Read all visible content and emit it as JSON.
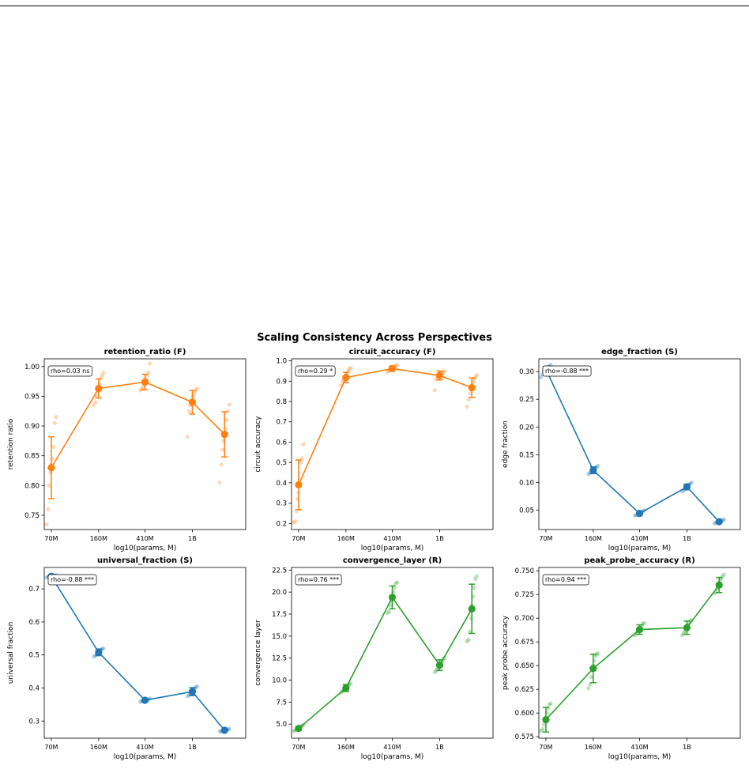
{
  "figure": {
    "suptitle": "Scaling Consistency Across Perspectives",
    "xtick_labels": [
      "70M",
      "160M",
      "410M",
      "1B"
    ],
    "xlabel": "log10(params, M)"
  },
  "colors": {
    "orange": "#ff7f0e",
    "blue": "#1f77b4",
    "green": "#2ca02c"
  },
  "chart_data": [
    {
      "type": "line",
      "title": "retention_ratio (F)",
      "xlabel": "log10(params, M)",
      "ylabel": "retention ratio",
      "annotation": "rho=0.03 ns",
      "color": "orange",
      "yticks": [
        0.75,
        0.8,
        0.85,
        0.9,
        0.95,
        1.0
      ],
      "ytick_labels": [
        "0.75",
        "0.80",
        "0.85",
        "0.90",
        "0.95",
        "1.00"
      ],
      "ylim": [
        0.726,
        1.013
      ],
      "x": [
        70,
        160,
        410,
        1000,
        1400
      ],
      "y": [
        0.83,
        0.963,
        0.974,
        0.94,
        0.886
      ],
      "yerr": [
        0.052,
        0.016,
        0.013,
        0.02,
        0.038
      ],
      "points": [
        [
          0.735,
          0.76,
          0.8,
          0.822,
          0.835,
          0.845,
          0.865,
          0.905,
          0.915
        ],
        [
          0.935,
          0.94,
          0.95,
          0.96,
          0.965,
          0.97,
          0.98,
          0.985,
          0.99
        ],
        [
          0.96,
          0.962,
          0.965,
          0.97,
          0.975,
          0.978,
          0.985,
          0.99,
          1.005
        ],
        [
          0.882,
          0.925,
          0.935,
          0.94,
          0.945,
          0.95,
          0.955,
          0.96,
          0.963
        ],
        [
          0.805,
          0.835,
          0.86,
          0.875,
          0.885,
          0.895,
          0.91,
          0.925,
          0.936
        ]
      ]
    },
    {
      "type": "line",
      "title": "circuit_accuracy (F)",
      "xlabel": "log10(params, M)",
      "ylabel": "circuit accuracy",
      "annotation": "rho=0.29 *",
      "color": "orange",
      "yticks": [
        0.2,
        0.3,
        0.4,
        0.5,
        0.6,
        0.7,
        0.8,
        0.9,
        1.0
      ],
      "ytick_labels": [
        "0.2",
        "0.3",
        "0.4",
        "0.5",
        "0.6",
        "0.7",
        "0.8",
        "0.9",
        "1.0"
      ],
      "ylim": [
        0.17,
        1.01
      ],
      "x": [
        70,
        160,
        410,
        1000,
        1400
      ],
      "y": [
        0.39,
        0.918,
        0.962,
        0.928,
        0.868
      ],
      "yerr": [
        0.122,
        0.025,
        0.013,
        0.022,
        0.048
      ],
      "points": [
        [
          0.205,
          0.21,
          0.26,
          0.32,
          0.35,
          0.4,
          0.5,
          0.52,
          0.59
        ],
        [
          0.88,
          0.9,
          0.91,
          0.92,
          0.93,
          0.94,
          0.95,
          0.96,
          0.965
        ],
        [
          0.945,
          0.95,
          0.955,
          0.96,
          0.962,
          0.965,
          0.97,
          0.975,
          0.98
        ],
        [
          0.855,
          0.91,
          0.92,
          0.925,
          0.93,
          0.935,
          0.94,
          0.945,
          0.95
        ],
        [
          0.775,
          0.81,
          0.84,
          0.86,
          0.88,
          0.895,
          0.91,
          0.92,
          0.93
        ]
      ]
    },
    {
      "type": "line",
      "title": "edge_fraction (S)",
      "xlabel": "log10(params, M)",
      "ylabel": "edge fraction",
      "annotation": "rho=-0.88 ***",
      "color": "blue",
      "yticks": [
        0.05,
        0.1,
        0.15,
        0.2,
        0.25,
        0.3
      ],
      "ytick_labels": [
        "0.05",
        "0.10",
        "0.15",
        "0.20",
        "0.25",
        "0.30"
      ],
      "ylim": [
        0.015,
        0.323
      ],
      "x": [
        70,
        160,
        410,
        1000,
        1400
      ],
      "y": [
        0.304,
        0.122,
        0.044,
        0.092,
        0.029
      ],
      "yerr": [
        0.005,
        0.006,
        0.003,
        0.005,
        0.002
      ],
      "points": [
        [
          0.29,
          0.295,
          0.3,
          0.302,
          0.305,
          0.307,
          0.308,
          0.31,
          0.312
        ],
        [
          0.115,
          0.117,
          0.119,
          0.121,
          0.122,
          0.124,
          0.126,
          0.128,
          0.13
        ],
        [
          0.04,
          0.041,
          0.042,
          0.043,
          0.044,
          0.045,
          0.046,
          0.048,
          0.05
        ],
        [
          0.084,
          0.086,
          0.088,
          0.09,
          0.092,
          0.094,
          0.096,
          0.098,
          0.1
        ],
        [
          0.026,
          0.027,
          0.028,
          0.028,
          0.029,
          0.03,
          0.031,
          0.032,
          0.033
        ]
      ]
    },
    {
      "type": "line",
      "title": "universal_fraction (S)",
      "xlabel": "log10(params, M)",
      "ylabel": "universal fraction",
      "annotation": "rho=-0.88 ***",
      "color": "blue",
      "yticks": [
        0.3,
        0.4,
        0.5,
        0.6,
        0.7
      ],
      "ytick_labels": [
        "0.3",
        "0.4",
        "0.5",
        "0.6",
        "0.7"
      ],
      "ylim": [
        0.248,
        0.765
      ],
      "x": [
        70,
        160,
        410,
        1000,
        1400
      ],
      "y": [
        0.738,
        0.508,
        0.363,
        0.389,
        0.272
      ],
      "yerr": [
        0.002,
        0.01,
        0.004,
        0.012,
        0.003
      ],
      "points": [
        [
          0.735,
          0.736,
          0.737,
          0.738,
          0.738,
          0.739,
          0.74,
          0.741,
          0.742
        ],
        [
          0.495,
          0.498,
          0.502,
          0.505,
          0.508,
          0.512,
          0.515,
          0.518,
          0.52
        ],
        [
          0.358,
          0.36,
          0.361,
          0.362,
          0.363,
          0.364,
          0.365,
          0.366,
          0.368
        ],
        [
          0.375,
          0.378,
          0.382,
          0.386,
          0.39,
          0.394,
          0.398,
          0.402,
          0.405
        ],
        [
          0.268,
          0.269,
          0.27,
          0.271,
          0.272,
          0.273,
          0.274,
          0.275,
          0.276
        ]
      ]
    },
    {
      "type": "line",
      "title": "convergence_layer (R)",
      "xlabel": "log10(params, M)",
      "ylabel": "convergence layer",
      "annotation": "rho=0.76 ***",
      "color": "green",
      "yticks": [
        5.0,
        7.5,
        10.0,
        12.5,
        15.0,
        17.5,
        20.0,
        22.5
      ],
      "ytick_labels": [
        "5.0",
        "7.5",
        "10.0",
        "12.5",
        "15.0",
        "17.5",
        "20.0",
        "22.5"
      ],
      "ylim": [
        3.4,
        22.8
      ],
      "x": [
        70,
        160,
        410,
        1000,
        1400
      ],
      "y": [
        4.5,
        9.1,
        19.4,
        11.7,
        18.1
      ],
      "yerr": [
        0.2,
        0.4,
        1.3,
        0.6,
        2.8
      ],
      "points": [
        [
          4.2,
          4.3,
          4.4,
          4.5,
          4.5,
          4.6,
          4.7,
          4.8,
          4.9
        ],
        [
          8.6,
          8.8,
          9.0,
          9.1,
          9.2,
          9.3,
          9.4,
          9.5,
          9.6
        ],
        [
          17.6,
          17.8,
          18.5,
          19.0,
          19.5,
          20.0,
          20.5,
          21.0,
          21.1
        ],
        [
          10.9,
          11.1,
          11.3,
          11.5,
          11.7,
          11.9,
          12.1,
          12.3,
          12.5
        ],
        [
          14.4,
          14.6,
          15.5,
          17.0,
          18.5,
          19.5,
          20.5,
          21.5,
          21.8
        ]
      ]
    },
    {
      "type": "line",
      "title": "peak_probe_accuracy (R)",
      "xlabel": "log10(params, M)",
      "ylabel": "peak probe accuracy",
      "annotation": "rho=0.94 ***",
      "color": "green",
      "yticks": [
        0.575,
        0.6,
        0.625,
        0.65,
        0.675,
        0.7,
        0.725,
        0.75
      ],
      "ytick_labels": [
        "0.575",
        "0.600",
        "0.625",
        "0.650",
        "0.675",
        "0.700",
        "0.725",
        "0.750"
      ],
      "ylim": [
        0.5735,
        0.7535
      ],
      "x": [
        70,
        160,
        410,
        1000,
        1400
      ],
      "y": [
        0.593,
        0.647,
        0.688,
        0.69,
        0.735
      ],
      "yerr": [
        0.013,
        0.015,
        0.005,
        0.007,
        0.008
      ],
      "points": [
        [
          0.581,
          0.583,
          0.588,
          0.592,
          0.595,
          0.6,
          0.605,
          0.609,
          0.61
        ],
        [
          0.626,
          0.63,
          0.638,
          0.645,
          0.65,
          0.655,
          0.66,
          0.662,
          0.663
        ],
        [
          0.682,
          0.684,
          0.686,
          0.688,
          0.689,
          0.69,
          0.692,
          0.694,
          0.695
        ],
        [
          0.682,
          0.684,
          0.686,
          0.689,
          0.691,
          0.693,
          0.695,
          0.697,
          0.698
        ],
        [
          0.726,
          0.728,
          0.731,
          0.734,
          0.737,
          0.74,
          0.742,
          0.744,
          0.746
        ]
      ]
    }
  ]
}
